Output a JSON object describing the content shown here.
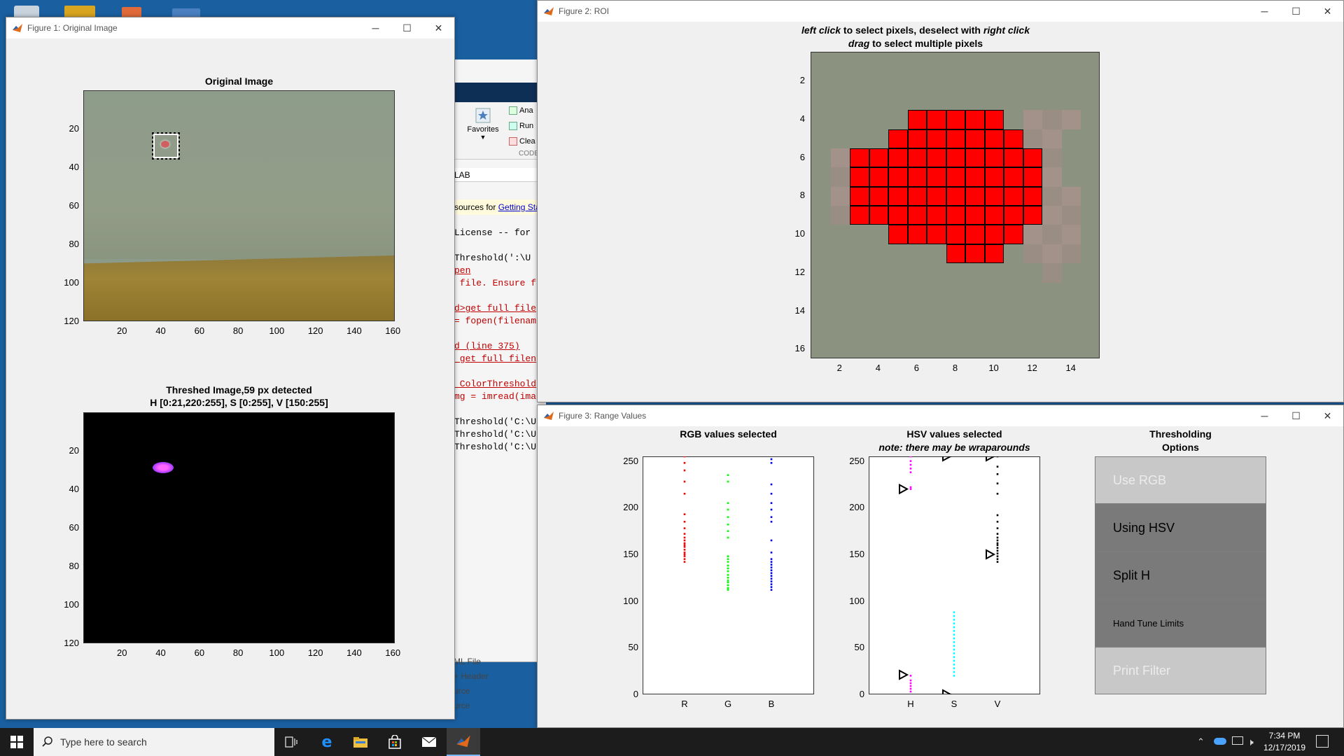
{
  "desktop": {
    "accent": "#1a5fa0"
  },
  "background_matlab": {
    "toolstrip": {
      "favorites_label": "Favorites",
      "analyze_label": "Ana",
      "run_label": "Run",
      "clear_label": "Clea",
      "section_label": "CODE"
    },
    "address": "LAB",
    "notice": {
      "text": "sources for ",
      "link": "Getting Sta"
    },
    "code_lines": [
      {
        "text": "License -- for",
        "color": "#000"
      },
      {
        "text": "Threshold(':\\U",
        "color": "#000"
      },
      {
        "text": "pen",
        "color": "#c00000"
      },
      {
        "text": " file. Ensure f",
        "color": "#c00000"
      },
      {
        "text": "d>get_full_file",
        "color": "#c00000"
      },
      {
        "text": "= fopen(filenam",
        "color": "#c00000"
      },
      {
        "text": "d (line 375)",
        "color": "#c00000"
      },
      {
        "text": " get_full_filen",
        "color": "#c00000"
      },
      {
        "text": "_ColorThreshold",
        "color": "#c00000"
      },
      {
        "text": "mg = imread(image_name);",
        "color": "#c00000"
      },
      {
        "text": "Threshold('C:\\U",
        "color": "#000"
      },
      {
        "text": "Threshold('C:\\U",
        "color": "#000"
      },
      {
        "text": "Threshold('C:\\U",
        "color": "#000"
      }
    ],
    "file_items": [
      "ML File",
      "+ Header",
      "urce",
      "urce"
    ]
  },
  "figure1": {
    "window_title": "Figure 1: Original Image",
    "top_plot": {
      "title": "Original Image",
      "xticks": [
        "20",
        "40",
        "60",
        "80",
        "100",
        "120",
        "140",
        "160"
      ],
      "yticks": [
        "20",
        "40",
        "60",
        "80",
        "100",
        "120"
      ]
    },
    "bottom_plot": {
      "title_line1": "Threshed Image,59 px detected",
      "title_line2": "H [0:21,220:255], S [0:255], V [150:255]",
      "xticks": [
        "20",
        "40",
        "60",
        "80",
        "100",
        "120",
        "140",
        "160"
      ],
      "yticks": [
        "20",
        "40",
        "60",
        "80",
        "100",
        "120"
      ]
    }
  },
  "figure2": {
    "window_title": "Figure 2: ROI",
    "instructions": {
      "l1_a": "left click",
      "l1_b": " to select pixels, deselect with ",
      "l1_c": "right click",
      "l2_a": "drag",
      "l2_b": " to select multiple pixels"
    },
    "xticks": [
      "2",
      "4",
      "6",
      "8",
      "10",
      "12",
      "14"
    ],
    "yticks": [
      "2",
      "4",
      "6",
      "8",
      "10",
      "12",
      "14",
      "16"
    ],
    "selected_color": "#ff0000"
  },
  "figure3": {
    "window_title": "Figure 3: Range Values",
    "rgb_plot": {
      "title": "RGB values selected",
      "xticks": [
        "R",
        "G",
        "B"
      ],
      "yticks": [
        "250",
        "200",
        "150",
        "100",
        "50",
        "0"
      ]
    },
    "hsv_plot": {
      "title": "HSV values selected",
      "note": "note: there may be wraparounds",
      "xticks": [
        "H",
        "S",
        "V"
      ],
      "yticks": [
        "250",
        "200",
        "150",
        "100",
        "50",
        "0"
      ]
    },
    "options": {
      "title_line1": "Thresholding",
      "title_line2": "Options",
      "buttons": [
        {
          "label": "Use RGB",
          "enabled": false
        },
        {
          "label": "Using HSV",
          "enabled": true
        },
        {
          "label": "Split H",
          "enabled": true
        },
        {
          "label": "Hand Tune Limits",
          "enabled": true
        },
        {
          "label": "Print Filter",
          "enabled": false
        }
      ]
    }
  },
  "chart_data": [
    {
      "type": "scatter",
      "title": "RGB values selected",
      "categories": [
        "R",
        "G",
        "B"
      ],
      "ylim": [
        0,
        255
      ],
      "series": [
        {
          "name": "R",
          "color": "#ff0000",
          "values": [
            255,
            248,
            240,
            228,
            215,
            193,
            185,
            178,
            172,
            168,
            165,
            162,
            160,
            158,
            155,
            152,
            150,
            148,
            145,
            142
          ]
        },
        {
          "name": "G",
          "color": "#00ff00",
          "values": [
            235,
            228,
            205,
            198,
            190,
            182,
            175,
            168,
            148,
            145,
            142,
            138,
            135,
            132,
            128,
            125,
            122,
            120,
            117,
            114,
            112
          ]
        },
        {
          "name": "B",
          "color": "#0000ff",
          "values": [
            252,
            248,
            225,
            215,
            205,
            198,
            190,
            185,
            165,
            152,
            145,
            142,
            139,
            136,
            133,
            130,
            127,
            124,
            121,
            118,
            115,
            112
          ]
        }
      ]
    },
    {
      "type": "scatter",
      "title": "HSV values selected",
      "categories": [
        "H",
        "S",
        "V"
      ],
      "ylim": [
        0,
        255
      ],
      "series": [
        {
          "name": "H",
          "color": "#ff00ff",
          "values": [
            255,
            250,
            246,
            242,
            238,
            222,
            220,
            20,
            15,
            12,
            9,
            6,
            3
          ]
        },
        {
          "name": "S",
          "color": "#00ffff",
          "values": [
            88,
            84,
            80,
            76,
            72,
            68,
            64,
            60,
            56,
            52,
            48,
            44,
            40,
            36,
            32,
            28,
            24,
            20
          ]
        },
        {
          "name": "V",
          "color": "#000000",
          "values": [
            255,
            244,
            236,
            226,
            215,
            192,
            185,
            178,
            172,
            168,
            165,
            162,
            160,
            157,
            154,
            151,
            148,
            145,
            142
          ]
        }
      ],
      "limit_markers": [
        {
          "channel": "H",
          "values": [
            220,
            21
          ]
        },
        {
          "channel": "S",
          "values": [
            255,
            0
          ]
        },
        {
          "channel": "V",
          "values": [
            255,
            150
          ]
        }
      ]
    }
  ],
  "taskbar": {
    "search_placeholder": "Type here to search",
    "time": "7:34 PM",
    "date": "12/17/2019"
  }
}
